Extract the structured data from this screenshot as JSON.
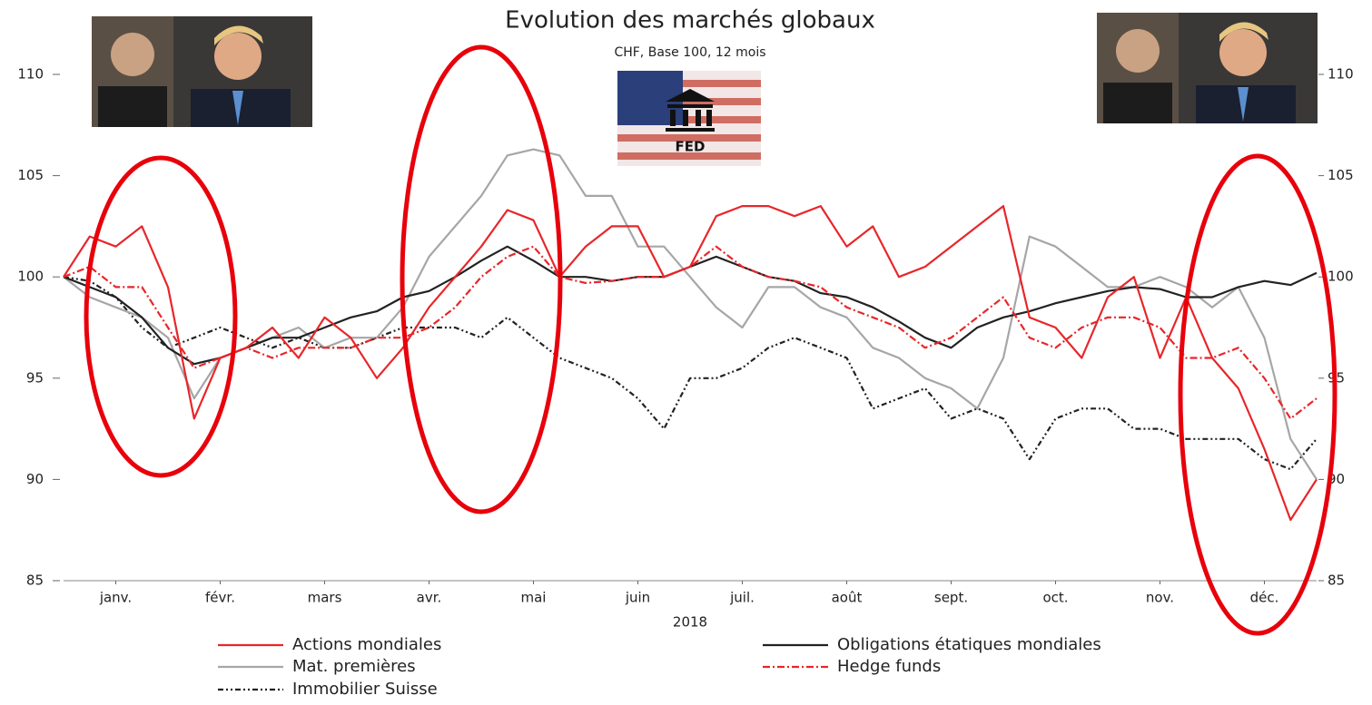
{
  "chart_data": {
    "type": "line",
    "title": "Evolution des marchés globaux",
    "subtitle": "CHF, Base 100, 12 mois",
    "xlabel": "2018",
    "image_label": "FED",
    "xlim": [
      0,
      12
    ],
    "xticks": [
      {
        "value": 0.5,
        "label": "janv."
      },
      {
        "value": 1.5,
        "label": "févr."
      },
      {
        "value": 2.5,
        "label": "mars"
      },
      {
        "value": 3.5,
        "label": "avr."
      },
      {
        "value": 4.5,
        "label": "mai"
      },
      {
        "value": 5.5,
        "label": "juin"
      },
      {
        "value": 6.5,
        "label": "juil."
      },
      {
        "value": 7.5,
        "label": "août"
      },
      {
        "value": 8.5,
        "label": "sept."
      },
      {
        "value": 9.5,
        "label": "oct."
      },
      {
        "value": 10.5,
        "label": "nov."
      },
      {
        "value": 11.5,
        "label": "déc."
      }
    ],
    "ylim": [
      85,
      110
    ],
    "yticks": [
      85,
      90,
      95,
      100,
      105,
      110
    ],
    "y2lim": [
      85,
      110
    ],
    "y2ticks": [
      85,
      90,
      95,
      100,
      105,
      110
    ],
    "x": [
      0,
      0.25,
      0.5,
      0.75,
      1,
      1.25,
      1.5,
      1.75,
      2,
      2.25,
      2.5,
      2.75,
      3,
      3.25,
      3.5,
      3.75,
      4,
      4.25,
      4.5,
      4.75,
      5,
      5.25,
      5.5,
      5.75,
      6,
      6.25,
      6.5,
      6.75,
      7,
      7.25,
      7.5,
      7.75,
      8,
      8.25,
      8.5,
      8.75,
      9,
      9.25,
      9.5,
      9.75,
      10,
      10.25,
      10.5,
      10.75,
      11,
      11.25,
      11.5,
      11.75,
      12
    ],
    "series": [
      {
        "name": "Actions mondiales",
        "color": "#e8262a",
        "style": "solid",
        "values": [
          100,
          102,
          101.5,
          102.5,
          99.5,
          93,
          96,
          96.5,
          97.5,
          96,
          98,
          97,
          95,
          96.5,
          98.5,
          100,
          101.5,
          103.3,
          102.8,
          100,
          101.5,
          102.5,
          102.5,
          100,
          100.5,
          103,
          103.5,
          103.5,
          103,
          103.5,
          101.5,
          102.5,
          100,
          100.5,
          101.5,
          102.5,
          103.5,
          98,
          97.5,
          96,
          99,
          100,
          96,
          99,
          96,
          94.5,
          91.5,
          88,
          90
        ]
      },
      {
        "name": "Obligations étatiques mondiales",
        "color": "#222222",
        "style": "solid",
        "values": [
          100,
          99.5,
          99,
          98,
          96.5,
          95.7,
          96,
          96.5,
          97,
          97,
          97.5,
          98,
          98.3,
          99,
          99.3,
          100,
          100.8,
          101.5,
          100.8,
          100,
          100,
          99.8,
          100,
          100,
          100.5,
          101,
          100.5,
          100,
          99.8,
          99.2,
          99,
          98.5,
          97.8,
          97,
          96.5,
          97.5,
          98,
          98.3,
          98.7,
          99,
          99.3,
          99.5,
          99.4,
          99,
          99,
          99.5,
          99.8,
          99.6,
          100.2
        ]
      },
      {
        "name": "Mat. premières",
        "color": "#a6a6a6",
        "style": "solid",
        "values": [
          100,
          99,
          98.5,
          98,
          97,
          94,
          96,
          96.5,
          97,
          97.5,
          96.5,
          97,
          97,
          98.5,
          101,
          102.5,
          104,
          106,
          106.3,
          106,
          104,
          104,
          101.5,
          101.5,
          100,
          98.5,
          97.5,
          99.5,
          99.5,
          98.5,
          98,
          96.5,
          96,
          95,
          94.5,
          93.5,
          96,
          102,
          101.5,
          100.5,
          99.5,
          99.5,
          100,
          99.5,
          98.5,
          99.5,
          97,
          92,
          90
        ]
      },
      {
        "name": "Hedge funds",
        "color": "#e8262a",
        "style": "dashdot",
        "values": [
          100,
          100.5,
          99.5,
          99.5,
          97.5,
          95.5,
          96,
          96.5,
          96,
          96.5,
          96.5,
          96.5,
          97,
          97,
          97.5,
          98.5,
          100,
          101,
          101.5,
          100,
          99.7,
          99.8,
          100,
          100,
          100.5,
          101.5,
          100.5,
          100,
          99.8,
          99.5,
          98.5,
          98,
          97.5,
          96.5,
          97,
          98,
          99,
          97,
          96.5,
          97.5,
          98,
          98,
          97.5,
          96,
          96,
          96.5,
          95,
          93,
          94
        ]
      },
      {
        "name": "Immobilier Suisse",
        "color": "#222222",
        "style": "dashdotdot",
        "values": [
          100,
          99.8,
          99,
          97.5,
          96.5,
          97,
          97.5,
          97,
          96.5,
          97,
          96.5,
          96.5,
          97,
          97.5,
          97.5,
          97.5,
          97,
          98,
          97,
          96,
          95.5,
          95,
          94,
          92.5,
          95,
          95,
          95.5,
          96.5,
          97,
          96.5,
          96,
          93.5,
          94,
          94.5,
          93,
          93.5,
          93,
          91,
          93,
          93.5,
          93.5,
          92.5,
          92.5,
          92,
          92,
          92,
          91,
          90.5,
          92
        ]
      }
    ]
  }
}
